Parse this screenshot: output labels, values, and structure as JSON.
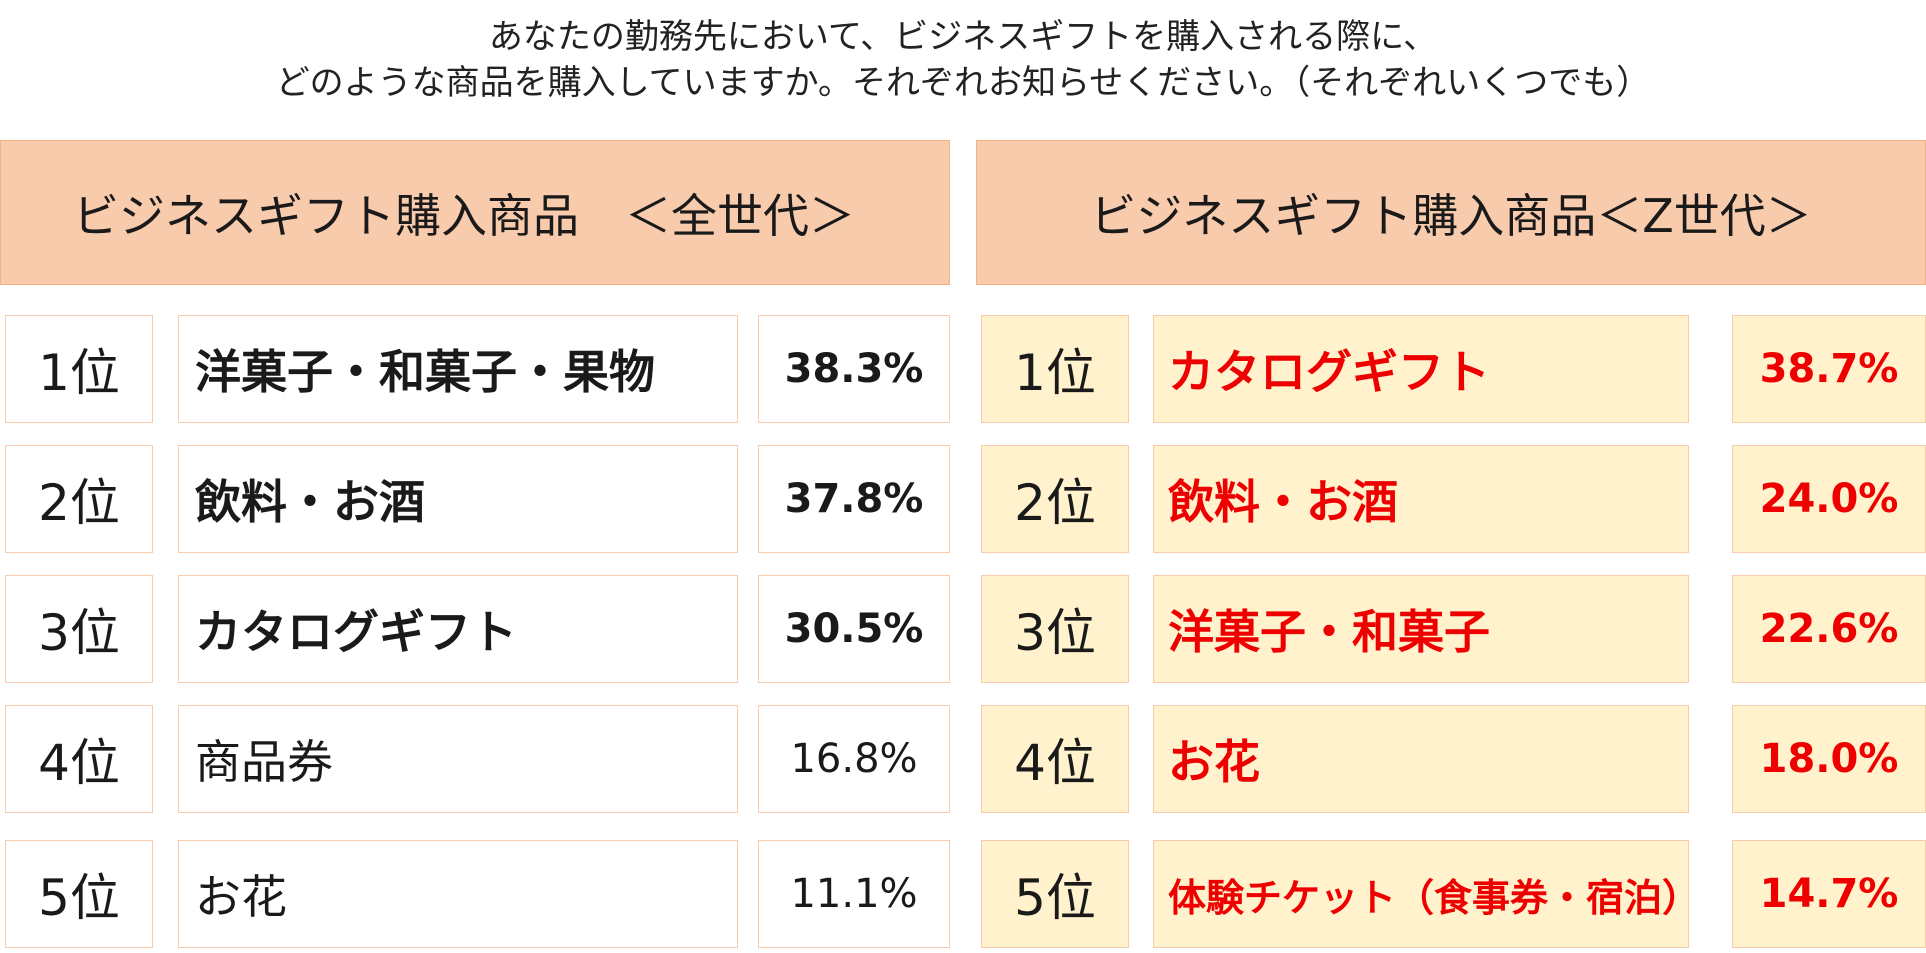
{
  "question": {
    "line1": "あなたの勤務先において、ビジネスギフトを購入される際に、",
    "line2": "どのような商品を購入していますか。それぞれお知らせください。（それぞれいくつでも）"
  },
  "colors": {
    "header_bg": "#f8cbad",
    "right_cell_bg": "#fff2cc",
    "highlight_text": "#ee0000"
  },
  "left_panel": {
    "title": "ビジネスギフト購入商品　＜全世代＞",
    "rows": [
      {
        "rank": "1位",
        "item": "洋菓子・和菓子・果物",
        "pct": "38.3%"
      },
      {
        "rank": "2位",
        "item": "飲料・お酒",
        "pct": "37.8%"
      },
      {
        "rank": "3位",
        "item": "カタログギフト",
        "pct": "30.5%"
      },
      {
        "rank": "4位",
        "item": "商品券",
        "pct": "16.8%"
      },
      {
        "rank": "5位",
        "item": "お花",
        "pct": "11.1%"
      }
    ]
  },
  "right_panel": {
    "title": "ビジネスギフト購入商品＜Z世代＞",
    "rows": [
      {
        "rank": "1位",
        "item": "カタログギフト",
        "pct": "38.7%"
      },
      {
        "rank": "2位",
        "item": "飲料・お酒",
        "pct": "24.0%"
      },
      {
        "rank": "3位",
        "item": "洋菓子・和菓子",
        "pct": "22.6%"
      },
      {
        "rank": "4位",
        "item": "お花",
        "pct": "18.0%"
      },
      {
        "rank": "5位",
        "item": "体験チケット（食事券・宿泊）",
        "pct": "14.7%"
      }
    ]
  }
}
